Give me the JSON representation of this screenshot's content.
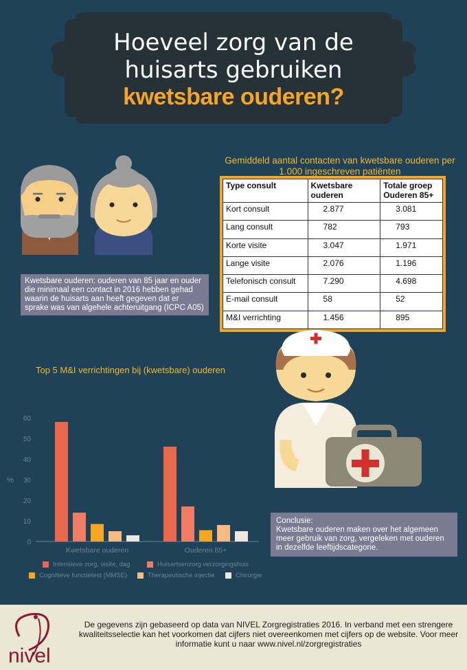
{
  "title": {
    "line1": "Hoeveel zorg van de",
    "line2": "huisarts gebruiken",
    "line3": "kwetsbare ouderen?"
  },
  "definition": "Kwetsbare ouderen: ouderen van 85 jaar en ouder die minimaal een contact in 2016 hebben gehad waarin de huisarts aan heeft gegeven dat er sprake was van algehele achteruitgang (ICPC A05)",
  "contacts_table": {
    "caption": "Gemiddeld aantal contacten van kwetsbare ouderen per 1.000 ingeschreven patiënten",
    "headers": [
      "Type consult",
      "Kwetsbare ouderen",
      "Totale groep Ouderen 85+"
    ],
    "rows": [
      [
        "Kort consult",
        "2.877",
        "3.081"
      ],
      [
        "Lang consult",
        "782",
        "793"
      ],
      [
        "Korte visite",
        "3.047",
        "1.971"
      ],
      [
        "Lange visite",
        "2.076",
        "1.196"
      ],
      [
        "Telefonisch consult",
        "7.290",
        "4.698"
      ],
      [
        "E-mail consult",
        "58",
        "52"
      ],
      [
        "M&I verrichting",
        "1.456",
        "895"
      ]
    ]
  },
  "chart_data": {
    "type": "bar",
    "title": "Top 5 M&I verrichtingen bij (kwetsbare) ouderen",
    "ylabel": "%",
    "ylim": [
      0,
      60
    ],
    "yticks": [
      0,
      10,
      20,
      30,
      40,
      50,
      60
    ],
    "grid": false,
    "legend_position": "bottom",
    "categories": [
      "Kwetsbare ouderen",
      "Ouderen 85+"
    ],
    "series": [
      {
        "name": "Intensieve zorg, visite, dag",
        "color": "#e8694e",
        "values": [
          58,
          46
        ]
      },
      {
        "name": "Huisartsenzorg verzorgingshuis",
        "color": "#f07c64",
        "values": [
          14,
          17
        ]
      },
      {
        "name": "Cognitieve functietest (MMSE)",
        "color": "#f5a623",
        "values": [
          8.5,
          5.5
        ]
      },
      {
        "name": "Therapeutische injectie",
        "color": "#f6bb83",
        "values": [
          5,
          8
        ]
      },
      {
        "name": "Chirurgie",
        "color": "#ebe9e1",
        "values": [
          3,
          5
        ]
      }
    ]
  },
  "conclusion": {
    "heading": "Conclusie:",
    "text": "Kwetsbare ouderen maken over het algemeen meer gebruik van zorg, vergeleken met ouderen in dezelfde leeftijdscategorie."
  },
  "footer": {
    "text": "De gegevens zijn gebaseerd op data van NIVEL Zorgregistraties 2016. In verband met een strengere kwaliteitsselectie kan het voorkomen dat cijfers niet overeenkomen met cijfers op de website. Voor meer informatie kunt u naar www.nivel.nl/zorgregistraties",
    "logo_text": "nivel"
  },
  "colors": {
    "background": "#1f4258",
    "banner": "#263238",
    "accent": "#f5a623",
    "box": "#7a7b93",
    "footer": "#ebe7d5"
  }
}
